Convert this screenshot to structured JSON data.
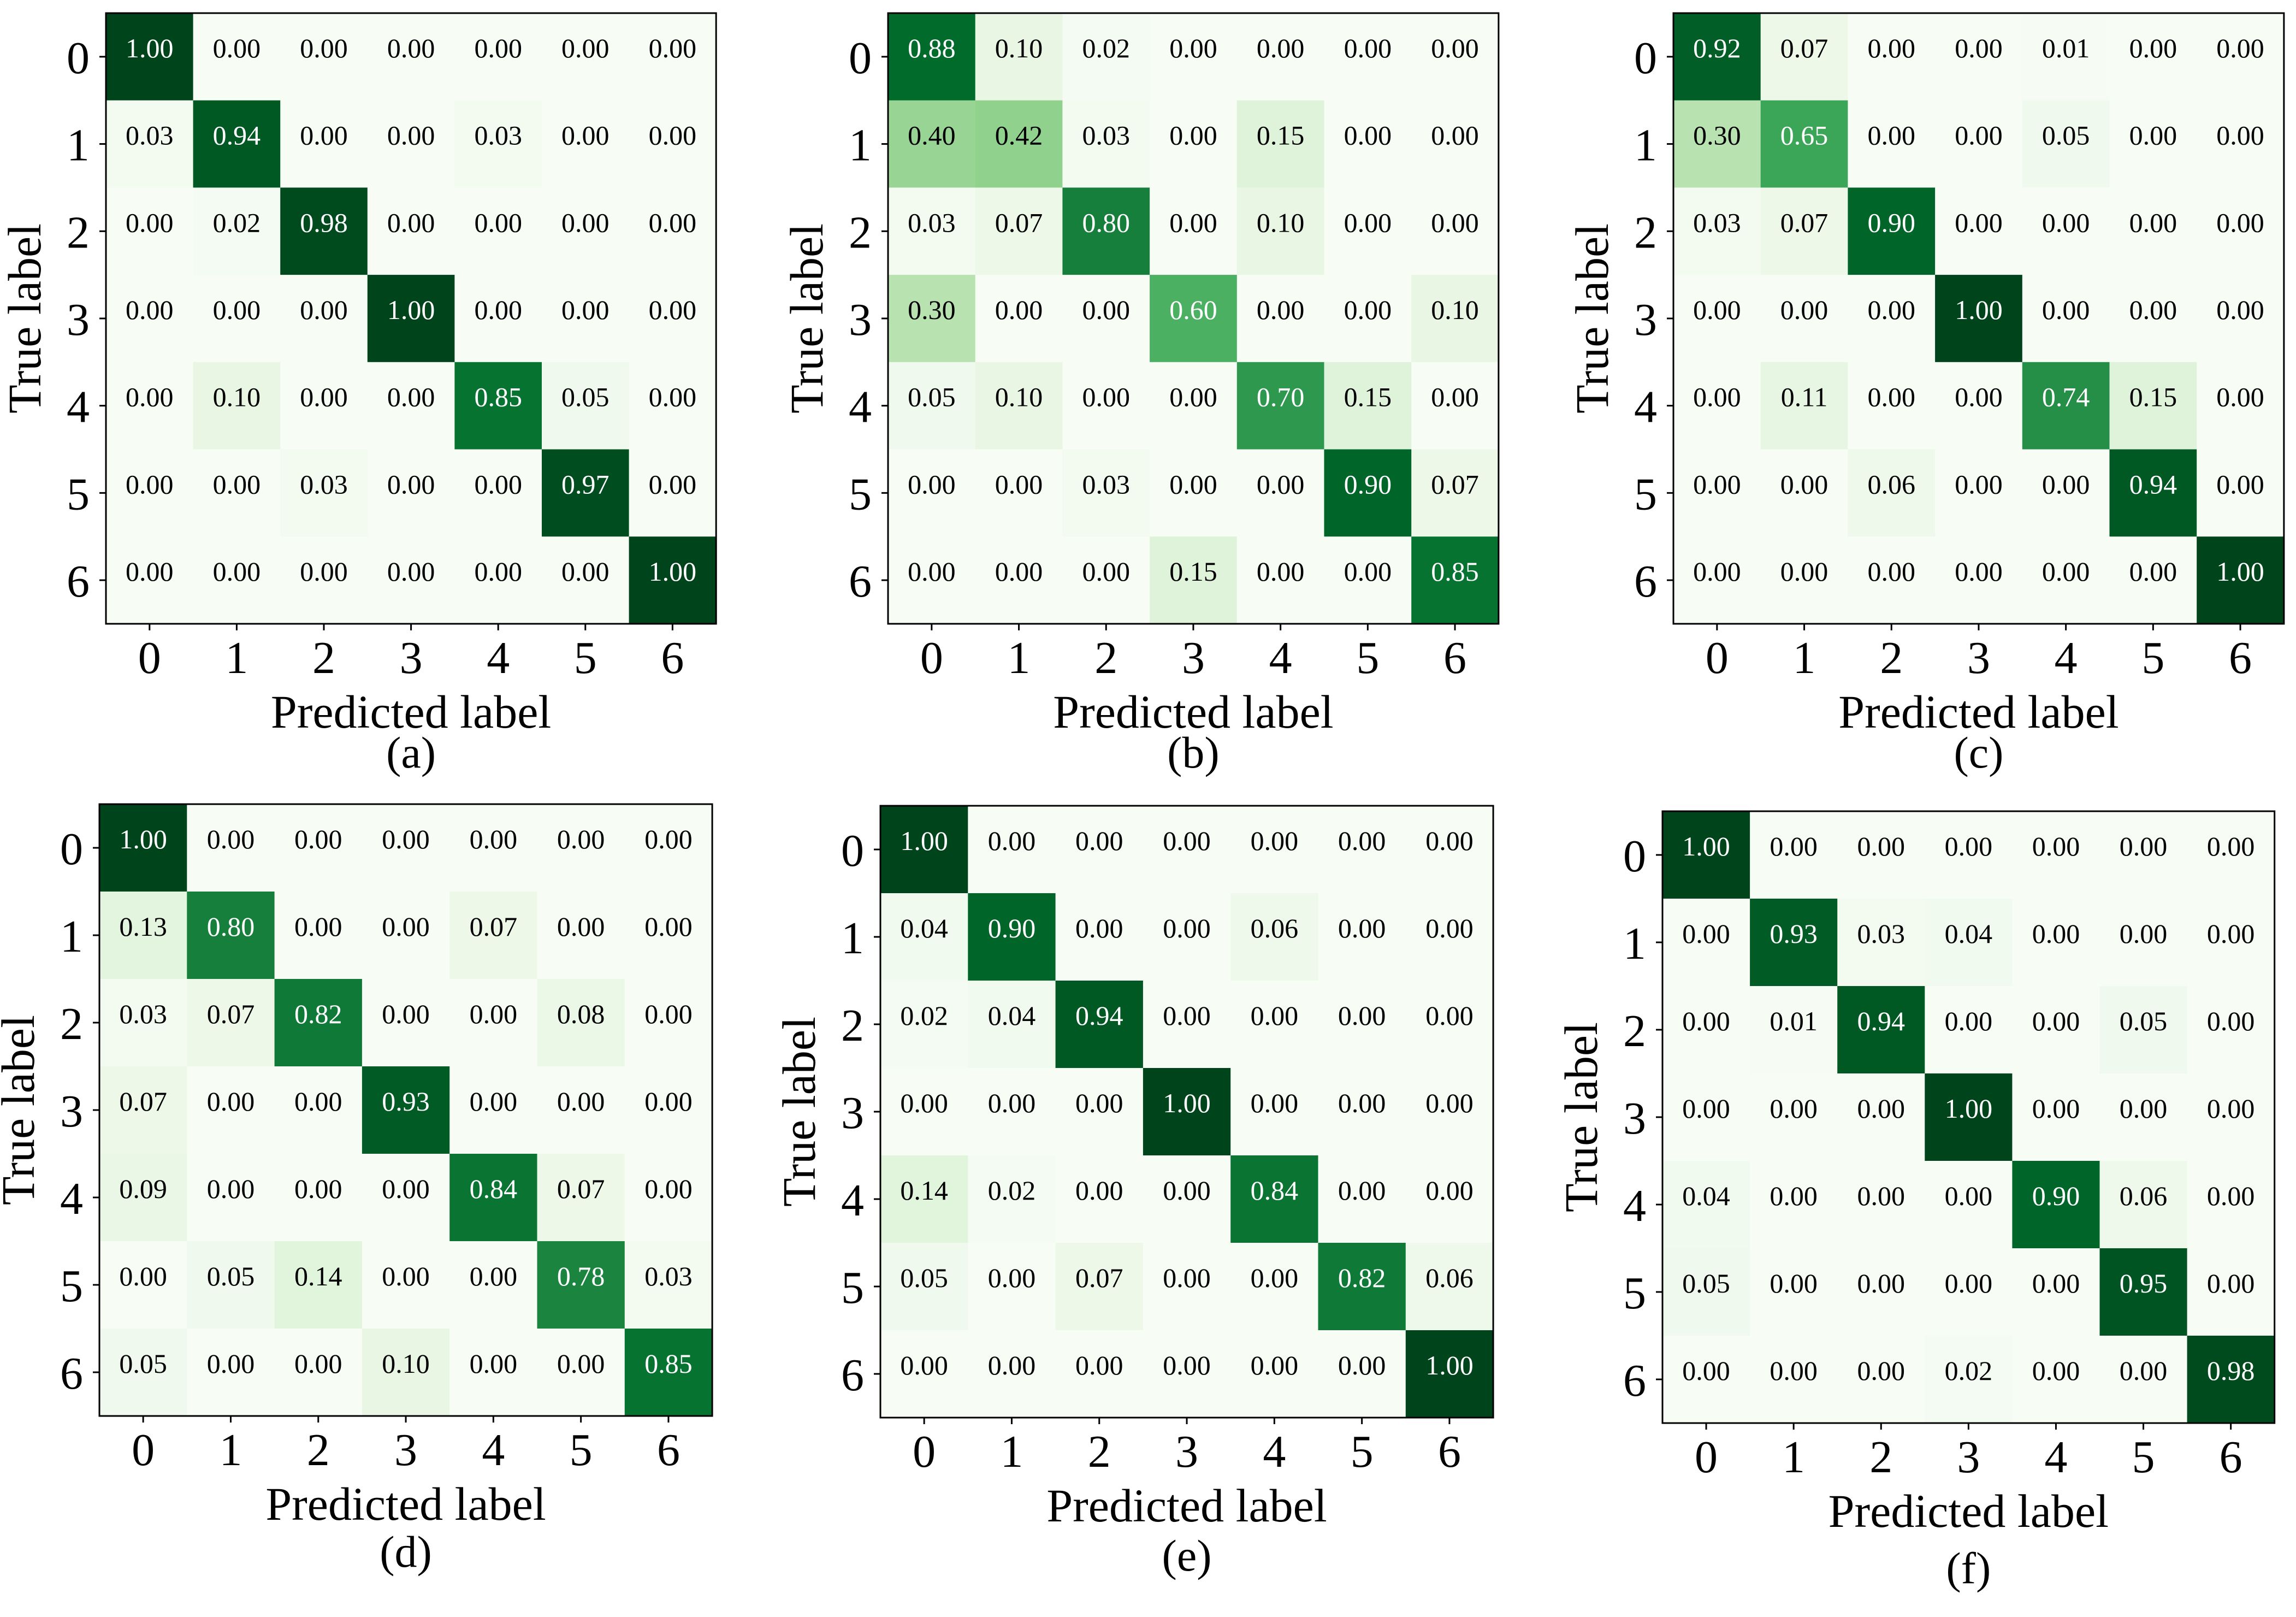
{
  "colors": {
    "low": "#f7fcf5",
    "high": "#00441b",
    "light_text": "#ffffff",
    "dark_text": "#000000",
    "frame": "#000000"
  },
  "chart_data": [
    {
      "type": "heatmap",
      "panel": "(a)",
      "xlabel": "Predicted label",
      "ylabel": "True label",
      "x_ticks": [
        "0",
        "1",
        "2",
        "3",
        "4",
        "5",
        "6"
      ],
      "y_ticks": [
        "0",
        "1",
        "2",
        "3",
        "4",
        "5",
        "6"
      ],
      "range": [
        0,
        1
      ],
      "values": [
        [
          "1.00",
          "0.00",
          "0.00",
          "0.00",
          "0.00",
          "0.00",
          "0.00"
        ],
        [
          "0.03",
          "0.94",
          "0.00",
          "0.00",
          "0.03",
          "0.00",
          "0.00"
        ],
        [
          "0.00",
          "0.02",
          "0.98",
          "0.00",
          "0.00",
          "0.00",
          "0.00"
        ],
        [
          "0.00",
          "0.00",
          "0.00",
          "1.00",
          "0.00",
          "0.00",
          "0.00"
        ],
        [
          "0.00",
          "0.10",
          "0.00",
          "0.00",
          "0.85",
          "0.05",
          "0.00"
        ],
        [
          "0.00",
          "0.00",
          "0.03",
          "0.00",
          "0.00",
          "0.97",
          "0.00"
        ],
        [
          "0.00",
          "0.00",
          "0.00",
          "0.00",
          "0.00",
          "0.00",
          "1.00"
        ]
      ]
    },
    {
      "type": "heatmap",
      "panel": "(b)",
      "xlabel": "Predicted label",
      "ylabel": "True label",
      "x_ticks": [
        "0",
        "1",
        "2",
        "3",
        "4",
        "5",
        "6"
      ],
      "y_ticks": [
        "0",
        "1",
        "2",
        "3",
        "4",
        "5",
        "6"
      ],
      "range": [
        0,
        1
      ],
      "values": [
        [
          "0.88",
          "0.10",
          "0.02",
          "0.00",
          "0.00",
          "0.00",
          "0.00"
        ],
        [
          "0.40",
          "0.42",
          "0.03",
          "0.00",
          "0.15",
          "0.00",
          "0.00"
        ],
        [
          "0.03",
          "0.07",
          "0.80",
          "0.00",
          "0.10",
          "0.00",
          "0.00"
        ],
        [
          "0.30",
          "0.00",
          "0.00",
          "0.60",
          "0.00",
          "0.00",
          "0.10"
        ],
        [
          "0.05",
          "0.10",
          "0.00",
          "0.00",
          "0.70",
          "0.15",
          "0.00"
        ],
        [
          "0.00",
          "0.00",
          "0.03",
          "0.00",
          "0.00",
          "0.90",
          "0.07"
        ],
        [
          "0.00",
          "0.00",
          "0.00",
          "0.15",
          "0.00",
          "0.00",
          "0.85"
        ]
      ]
    },
    {
      "type": "heatmap",
      "panel": "(c)",
      "xlabel": "Predicted label",
      "ylabel": "True label",
      "x_ticks": [
        "0",
        "1",
        "2",
        "3",
        "4",
        "5",
        "6"
      ],
      "y_ticks": [
        "0",
        "1",
        "2",
        "3",
        "4",
        "5",
        "6"
      ],
      "range": [
        0,
        1
      ],
      "values": [
        [
          "0.92",
          "0.07",
          "0.00",
          "0.00",
          "0.01",
          "0.00",
          "0.00"
        ],
        [
          "0.30",
          "0.65",
          "0.00",
          "0.00",
          "0.05",
          "0.00",
          "0.00"
        ],
        [
          "0.03",
          "0.07",
          "0.90",
          "0.00",
          "0.00",
          "0.00",
          "0.00"
        ],
        [
          "0.00",
          "0.00",
          "0.00",
          "1.00",
          "0.00",
          "0.00",
          "0.00"
        ],
        [
          "0.00",
          "0.11",
          "0.00",
          "0.00",
          "0.74",
          "0.15",
          "0.00"
        ],
        [
          "0.00",
          "0.00",
          "0.06",
          "0.00",
          "0.00",
          "0.94",
          "0.00"
        ],
        [
          "0.00",
          "0.00",
          "0.00",
          "0.00",
          "0.00",
          "0.00",
          "1.00"
        ]
      ]
    },
    {
      "type": "heatmap",
      "panel": "(d)",
      "xlabel": "Predicted label",
      "ylabel": "True label",
      "x_ticks": [
        "0",
        "1",
        "2",
        "3",
        "4",
        "5",
        "6"
      ],
      "y_ticks": [
        "0",
        "1",
        "2",
        "3",
        "4",
        "5",
        "6"
      ],
      "range": [
        0,
        1
      ],
      "values": [
        [
          "1.00",
          "0.00",
          "0.00",
          "0.00",
          "0.00",
          "0.00",
          "0.00"
        ],
        [
          "0.13",
          "0.80",
          "0.00",
          "0.00",
          "0.07",
          "0.00",
          "0.00"
        ],
        [
          "0.03",
          "0.07",
          "0.82",
          "0.00",
          "0.00",
          "0.08",
          "0.00"
        ],
        [
          "0.07",
          "0.00",
          "0.00",
          "0.93",
          "0.00",
          "0.00",
          "0.00"
        ],
        [
          "0.09",
          "0.00",
          "0.00",
          "0.00",
          "0.84",
          "0.07",
          "0.00"
        ],
        [
          "0.00",
          "0.05",
          "0.14",
          "0.00",
          "0.00",
          "0.78",
          "0.03"
        ],
        [
          "0.05",
          "0.00",
          "0.00",
          "0.10",
          "0.00",
          "0.00",
          "0.85"
        ]
      ]
    },
    {
      "type": "heatmap",
      "panel": "(e)",
      "xlabel": "Predicted label",
      "ylabel": "True label",
      "x_ticks": [
        "0",
        "1",
        "2",
        "3",
        "4",
        "5",
        "6"
      ],
      "y_ticks": [
        "0",
        "1",
        "2",
        "3",
        "4",
        "5",
        "6"
      ],
      "range": [
        0,
        1
      ],
      "values": [
        [
          "1.00",
          "0.00",
          "0.00",
          "0.00",
          "0.00",
          "0.00",
          "0.00"
        ],
        [
          "0.04",
          "0.90",
          "0.00",
          "0.00",
          "0.06",
          "0.00",
          "0.00"
        ],
        [
          "0.02",
          "0.04",
          "0.94",
          "0.00",
          "0.00",
          "0.00",
          "0.00"
        ],
        [
          "0.00",
          "0.00",
          "0.00",
          "1.00",
          "0.00",
          "0.00",
          "0.00"
        ],
        [
          "0.14",
          "0.02",
          "0.00",
          "0.00",
          "0.84",
          "0.00",
          "0.00"
        ],
        [
          "0.05",
          "0.00",
          "0.07",
          "0.00",
          "0.00",
          "0.82",
          "0.06"
        ],
        [
          "0.00",
          "0.00",
          "0.00",
          "0.00",
          "0.00",
          "0.00",
          "1.00"
        ]
      ]
    },
    {
      "type": "heatmap",
      "panel": "(f)",
      "xlabel": "Predicted label",
      "ylabel": "True label",
      "x_ticks": [
        "0",
        "1",
        "2",
        "3",
        "4",
        "5",
        "6"
      ],
      "y_ticks": [
        "0",
        "1",
        "2",
        "3",
        "4",
        "5",
        "6"
      ],
      "range": [
        0,
        1
      ],
      "values": [
        [
          "1.00",
          "0.00",
          "0.00",
          "0.00",
          "0.00",
          "0.00",
          "0.00"
        ],
        [
          "0.00",
          "0.93",
          "0.03",
          "0.04",
          "0.00",
          "0.00",
          "0.00"
        ],
        [
          "0.00",
          "0.01",
          "0.94",
          "0.00",
          "0.00",
          "0.05",
          "0.00"
        ],
        [
          "0.00",
          "0.00",
          "0.00",
          "1.00",
          "0.00",
          "0.00",
          "0.00"
        ],
        [
          "0.04",
          "0.00",
          "0.00",
          "0.00",
          "0.90",
          "0.06",
          "0.00"
        ],
        [
          "0.05",
          "0.00",
          "0.00",
          "0.00",
          "0.00",
          "0.95",
          "0.00"
        ],
        [
          "0.00",
          "0.00",
          "0.00",
          "0.02",
          "0.00",
          "0.00",
          "0.98"
        ]
      ]
    }
  ]
}
